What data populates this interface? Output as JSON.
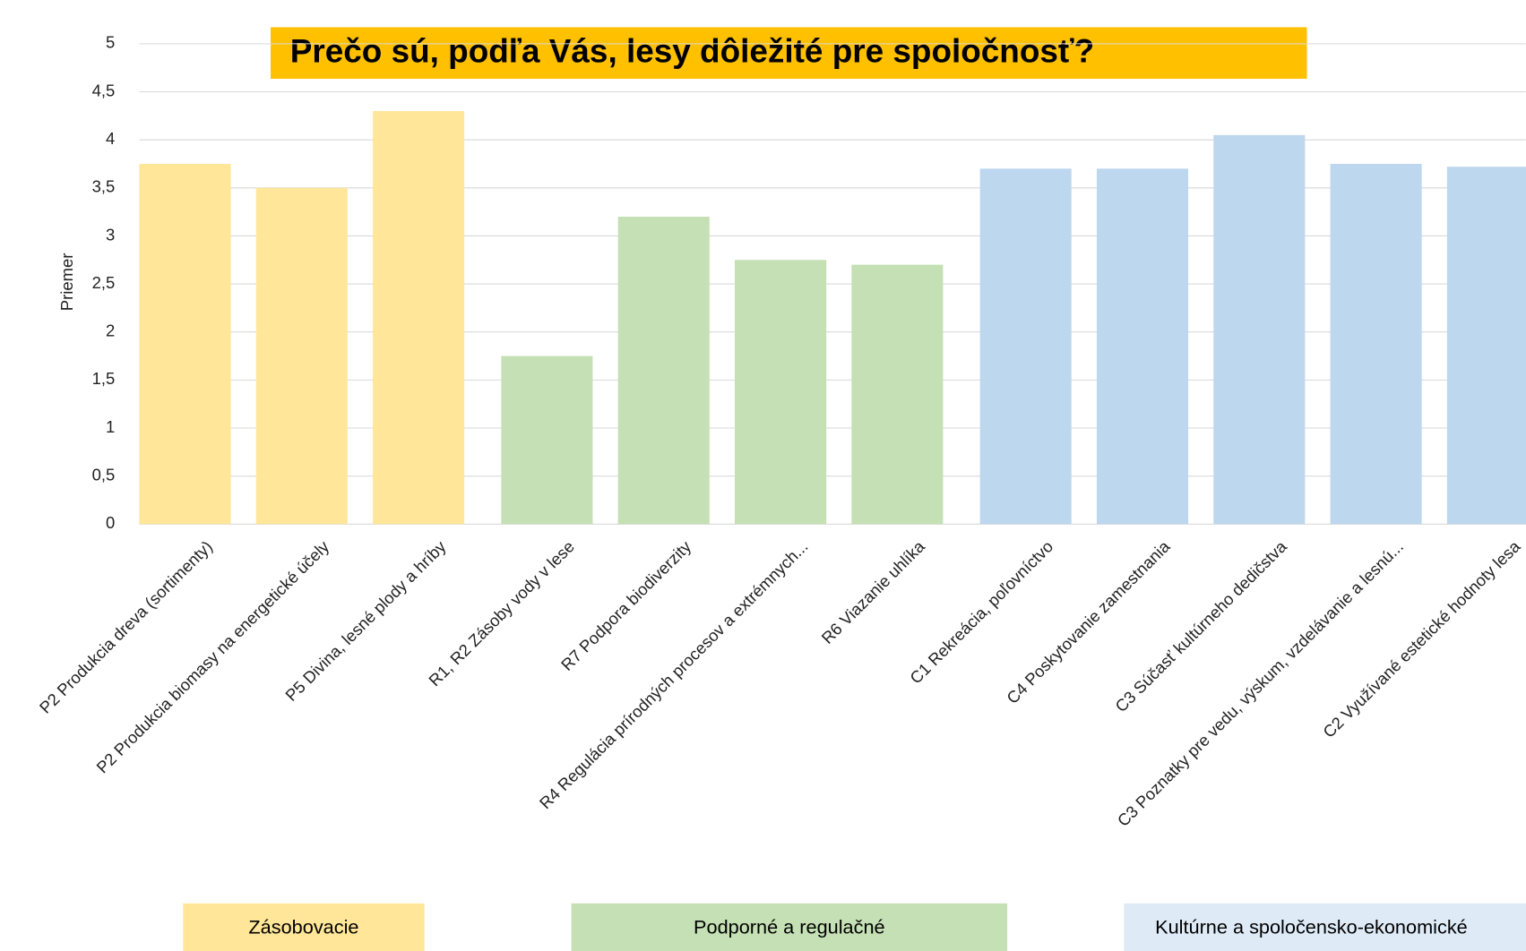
{
  "chart_data": {
    "type": "bar",
    "title": "Prečo sú, podľa Vás, lesy dôležité pre spoločnosť?",
    "y_label": "Priemer",
    "categories": [
      "P2 Produkcia dreva (sortimenty)",
      "P2 Produkcia biomasy na energetické účely",
      "P5 Divina, lesné plody a hríby",
      "R1, R2 Zásoby vody v lese",
      "R7 Podpora biodiverzity",
      "R4 Regulácia prírodných procesov a extrémnych...",
      "R6 Viazanie uhlíka",
      "C1 Rekreácia, poľovníctvo",
      "C4 Poskytovanie zamestnania",
      "C3 Súčasť kultúrneho dedičstva",
      "C3 Poznatky pre vedu, výskum, vzdelávanie a lesnú...",
      "C2 Využívané estetické hodnoty lesa"
    ],
    "series": [
      {
        "name": "Zásobovacie",
        "color": "#FFE699",
        "values": [
          3.75,
          3.5,
          4.3,
          null,
          null,
          null,
          null,
          null,
          null,
          null,
          null,
          null
        ]
      },
      {
        "name": "Podporné a regulačné",
        "color": "#C5E0B4",
        "values": [
          null,
          null,
          null,
          1.75,
          3.2,
          2.75,
          2.7,
          null,
          null,
          null,
          null,
          null
        ]
      },
      {
        "name": "Kultúrne a spoločensko-ekonomické",
        "color": "#BDD7EE",
        "values": [
          null,
          null,
          null,
          null,
          null,
          null,
          null,
          3.7,
          3.7,
          4.05,
          3.75,
          3.72
        ]
      }
    ],
    "ylim": [
      0,
      5
    ],
    "yticks": [
      0,
      {
        "value": 0.5,
        "label": "0,5"
      },
      1,
      {
        "value": 1.5,
        "label": "1,5"
      },
      2,
      {
        "value": 2.5,
        "label": "2,5"
      },
      3,
      {
        "value": 3.5,
        "label": "3,5"
      },
      4,
      {
        "value": 4.5,
        "label": "4,5"
      },
      5
    ],
    "grid": true
  }
}
